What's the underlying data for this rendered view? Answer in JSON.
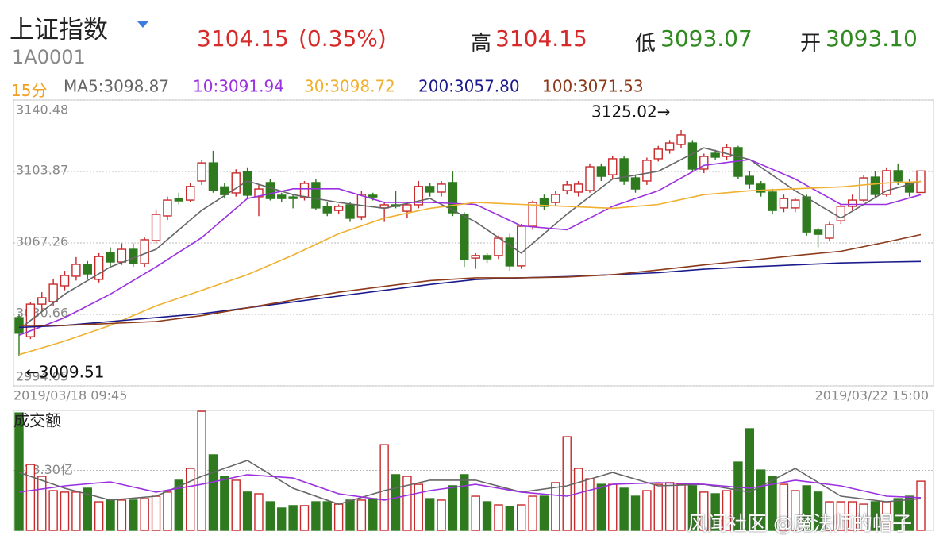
{
  "header": {
    "title": "上证指数",
    "code": "1A0001",
    "price": "3104.15",
    "change": "(0.35%)",
    "high_label": "高",
    "high": "3104.15",
    "low_label": "低",
    "low": "3093.07",
    "open_label": "开",
    "open": "3093.10"
  },
  "period": "15分",
  "watermark": "风闻社区 @魔法师的帽子",
  "chart_data": [
    {
      "type": "candlestick",
      "open": [
        3029,
        3019.2,
        3035.9,
        3037.2,
        3045.3,
        3050.2,
        3056.3,
        3048.6,
        3062.4,
        3057.5,
        3064,
        3056.7,
        3068.5,
        3081.1,
        3090,
        3089.2,
        3099,
        3108.3,
        3096,
        3092.9,
        3103.9,
        3090.9,
        3098.2,
        3091.7,
        3090.8,
        3090.8,
        3098.2,
        3086,
        3083.9,
        3086.8,
        3080.7,
        3091.7,
        3085.2,
        3086.8,
        3083.5,
        3086.8,
        3096.2,
        3093.3,
        3098.2,
        3081.9,
        3059.5,
        3060.8,
        3060.8,
        3069.7,
        3055.5,
        3075.8,
        3090,
        3088,
        3094.1,
        3093.3,
        3094.1,
        3106.3,
        3102.2,
        3110.4,
        3100.6,
        3099,
        3110.4,
        3114.9,
        3117.7,
        3118.5,
        3105.1,
        3113.2,
        3111.6,
        3116.1,
        3101.4,
        3097.4,
        3093.3,
        3085.2,
        3085.2,
        3090.8,
        3073.8,
        3069.7,
        3078.6,
        3086,
        3089.2,
        3101,
        3092.1,
        3104.3,
        3098.2,
        3093.1
      ],
      "high": [
        3031,
        3037,
        3042,
        3049,
        3053,
        3060,
        3058,
        3062,
        3065,
        3067,
        3067,
        3070,
        3084,
        3091,
        3093,
        3098,
        3110,
        3114.5,
        3098,
        3105,
        3106,
        3097,
        3100,
        3093,
        3092,
        3099,
        3100,
        3088,
        3087,
        3088,
        3094,
        3093,
        3088,
        3094,
        3088,
        3099,
        3098,
        3099,
        3104,
        3083,
        3062,
        3062,
        3071,
        3072,
        3077,
        3089,
        3092,
        3094,
        3099,
        3099,
        3108,
        3108,
        3112,
        3112,
        3102,
        3111,
        3117,
        3120,
        3125.02,
        3120,
        3113,
        3115,
        3118,
        3117,
        3104,
        3099,
        3095,
        3092,
        3090,
        3092,
        3075,
        3078,
        3087,
        3092,
        3102,
        3104,
        3106,
        3108,
        3100,
        3104.15
      ],
      "low": [
        3009.51,
        3018,
        3033,
        3035,
        3043,
        3048,
        3049,
        3047,
        3055,
        3056,
        3055,
        3055,
        3067,
        3079,
        3087,
        3088,
        3097,
        3093,
        3090,
        3091,
        3090,
        3081,
        3089,
        3088,
        3085,
        3089,
        3084,
        3081,
        3082,
        3078,
        3079,
        3089,
        3078,
        3085,
        3080,
        3085,
        3091,
        3091,
        3081,
        3055,
        3054,
        3057,
        3059,
        3053,
        3054,
        3074,
        3084,
        3086,
        3092,
        3091,
        3093,
        3099,
        3100,
        3097,
        3093,
        3097,
        3109,
        3113,
        3116,
        3104,
        3103,
        3110,
        3110,
        3100,
        3095,
        3091,
        3082,
        3083,
        3083,
        3071,
        3065,
        3068,
        3077,
        3084,
        3088,
        3090,
        3091,
        3097,
        3091,
        3093.07
      ],
      "close": [
        3021,
        3035.9,
        3039.2,
        3046.1,
        3050.6,
        3056.3,
        3051.4,
        3060.3,
        3057.5,
        3064,
        3056.7,
        3068.9,
        3081.9,
        3089.2,
        3088.8,
        3096.2,
        3108.3,
        3094.1,
        3092,
        3103.1,
        3091.7,
        3094.9,
        3090,
        3090,
        3090,
        3097.8,
        3085.2,
        3082.7,
        3086,
        3079.9,
        3092.1,
        3090.8,
        3086.8,
        3086,
        3086.8,
        3096.2,
        3093.3,
        3097.4,
        3082.7,
        3058.7,
        3060.8,
        3059.1,
        3069.7,
        3055.5,
        3075.8,
        3088,
        3086,
        3092.1,
        3097,
        3097.4,
        3106.3,
        3101.4,
        3110.4,
        3099,
        3094.9,
        3109.6,
        3115.3,
        3118.5,
        3122.6,
        3105.1,
        3111.6,
        3111.2,
        3116.1,
        3101.4,
        3097.4,
        3093.3,
        3083.9,
        3090,
        3089.2,
        3072.9,
        3071.7,
        3076.6,
        3086,
        3089.2,
        3100.6,
        3092.1,
        3104.3,
        3099,
        3093.3,
        3104.15
      ],
      "up_color": "#c8292b",
      "down_color": "#2f7a1f",
      "ylim": [
        2994.05,
        3140.48
      ],
      "yticks": [
        2994.05,
        3030.66,
        3067.26,
        3103.87,
        3140.48
      ],
      "grid": true,
      "x_labels": [
        "2019/03/18 09:45",
        "2019/03/22 15:00"
      ],
      "annotations": [
        "3125.02→",
        "←3009.51"
      ],
      "series": [
        {
          "name": "MA5:3098.87",
          "color": "#666666",
          "x": [
            0,
            4,
            8,
            12,
            16,
            20,
            24,
            28,
            32,
            36,
            40,
            44,
            48,
            52,
            56,
            60,
            64,
            68,
            72,
            76,
            79
          ],
          "values": [
            3023,
            3041,
            3055,
            3064,
            3084,
            3099,
            3092,
            3088,
            3085,
            3090,
            3078,
            3062,
            3082,
            3100,
            3104,
            3116,
            3110,
            3094,
            3080,
            3094,
            3098.87
          ]
        },
        {
          "name": "10:3091.94",
          "color": "#9b30e0",
          "x": [
            0,
            4,
            8,
            12,
            16,
            20,
            24,
            28,
            32,
            36,
            40,
            44,
            48,
            52,
            56,
            60,
            64,
            68,
            72,
            76,
            79
          ],
          "values": [
            3020,
            3029,
            3041,
            3055,
            3070,
            3090,
            3095,
            3095,
            3088,
            3088,
            3087,
            3076,
            3074,
            3086,
            3094,
            3107,
            3110,
            3100,
            3087,
            3087,
            3091.94
          ]
        },
        {
          "name": "30:3098.72",
          "color": "#f0b030",
          "x": [
            0,
            4,
            8,
            12,
            16,
            20,
            24,
            28,
            32,
            36,
            40,
            44,
            48,
            52,
            56,
            60,
            64,
            68,
            72,
            76,
            79
          ],
          "values": [
            3010,
            3017,
            3025,
            3035,
            3043,
            3051,
            3061,
            3072,
            3080,
            3085,
            3088,
            3087,
            3086,
            3085,
            3087,
            3092,
            3094,
            3095,
            3096,
            3098,
            3098.72
          ]
        },
        {
          "name": "200:3057.80",
          "color": "#1a1a8c",
          "x": [
            0,
            4,
            8,
            12,
            16,
            20,
            24,
            28,
            32,
            36,
            40,
            44,
            48,
            52,
            56,
            60,
            64,
            68,
            72,
            76,
            79
          ],
          "values": [
            3024,
            3025,
            3027,
            3029,
            3031,
            3034,
            3037,
            3040,
            3043,
            3046,
            3048.5,
            3049.4,
            3050,
            3051,
            3052,
            3053.8,
            3055,
            3056,
            3057,
            3057.5,
            3057.8
          ]
        },
        {
          "name": "100:3071.53",
          "color": "#8b3a1a",
          "x": [
            0,
            4,
            8,
            12,
            16,
            20,
            24,
            28,
            32,
            36,
            40,
            44,
            48,
            52,
            56,
            60,
            64,
            68,
            72,
            76,
            79
          ],
          "values": [
            3025,
            3025,
            3026,
            3027,
            3030,
            3034,
            3038,
            3042,
            3045,
            3048,
            3049.4,
            3049.4,
            3049.8,
            3051,
            3053.4,
            3056,
            3058.3,
            3060.8,
            3063,
            3067.7,
            3071.53
          ]
        }
      ]
    },
    {
      "type": "bar",
      "title": "成交额",
      "values": [
        633,
        355,
        291,
        214,
        206,
        206,
        227,
        154,
        163,
        163,
        163,
        171,
        184,
        206,
        270,
        334,
        642,
        407,
        291,
        270,
        206,
        197,
        154,
        120,
        133,
        133,
        154,
        154,
        141,
        163,
        163,
        171,
        462,
        300,
        291,
        248,
        171,
        163,
        240,
        300,
        184,
        154,
        137,
        128,
        137,
        184,
        184,
        257,
        505,
        334,
        278,
        248,
        248,
        227,
        184,
        214,
        248,
        257,
        248,
        240,
        206,
        197,
        214,
        368,
        548,
        325,
        291,
        248,
        214,
        240,
        206,
        154,
        154,
        154,
        141,
        154,
        154,
        171,
        184,
        265
      ],
      "ylim": [
        0,
        646.6
      ],
      "yticks": [
        {
          "value": 323.3,
          "label": "323.30亿"
        }
      ],
      "grid": true,
      "series": [
        {
          "name": "MA5",
          "color": "#666666",
          "x": [
            0,
            4,
            8,
            12,
            16,
            20,
            24,
            28,
            32,
            36,
            40,
            44,
            48,
            52,
            56,
            60,
            64,
            68,
            72,
            76,
            79
          ],
          "values": [
            312,
            227,
            163,
            184,
            291,
            377,
            227,
            141,
            214,
            270,
            270,
            206,
            240,
            312,
            240,
            248,
            206,
            334,
            184,
            154,
            171
          ]
        },
        {
          "name": "MA10",
          "color": "#9b30e0",
          "x": [
            0,
            4,
            8,
            12,
            16,
            20,
            24,
            28,
            32,
            36,
            40,
            44,
            48,
            52,
            56,
            60,
            64,
            68,
            72,
            76,
            79
          ],
          "values": [
            206,
            240,
            261,
            206,
            248,
            300,
            282,
            197,
            163,
            214,
            248,
            206,
            184,
            248,
            257,
            248,
            227,
            270,
            240,
            184,
            176
          ]
        }
      ]
    }
  ]
}
